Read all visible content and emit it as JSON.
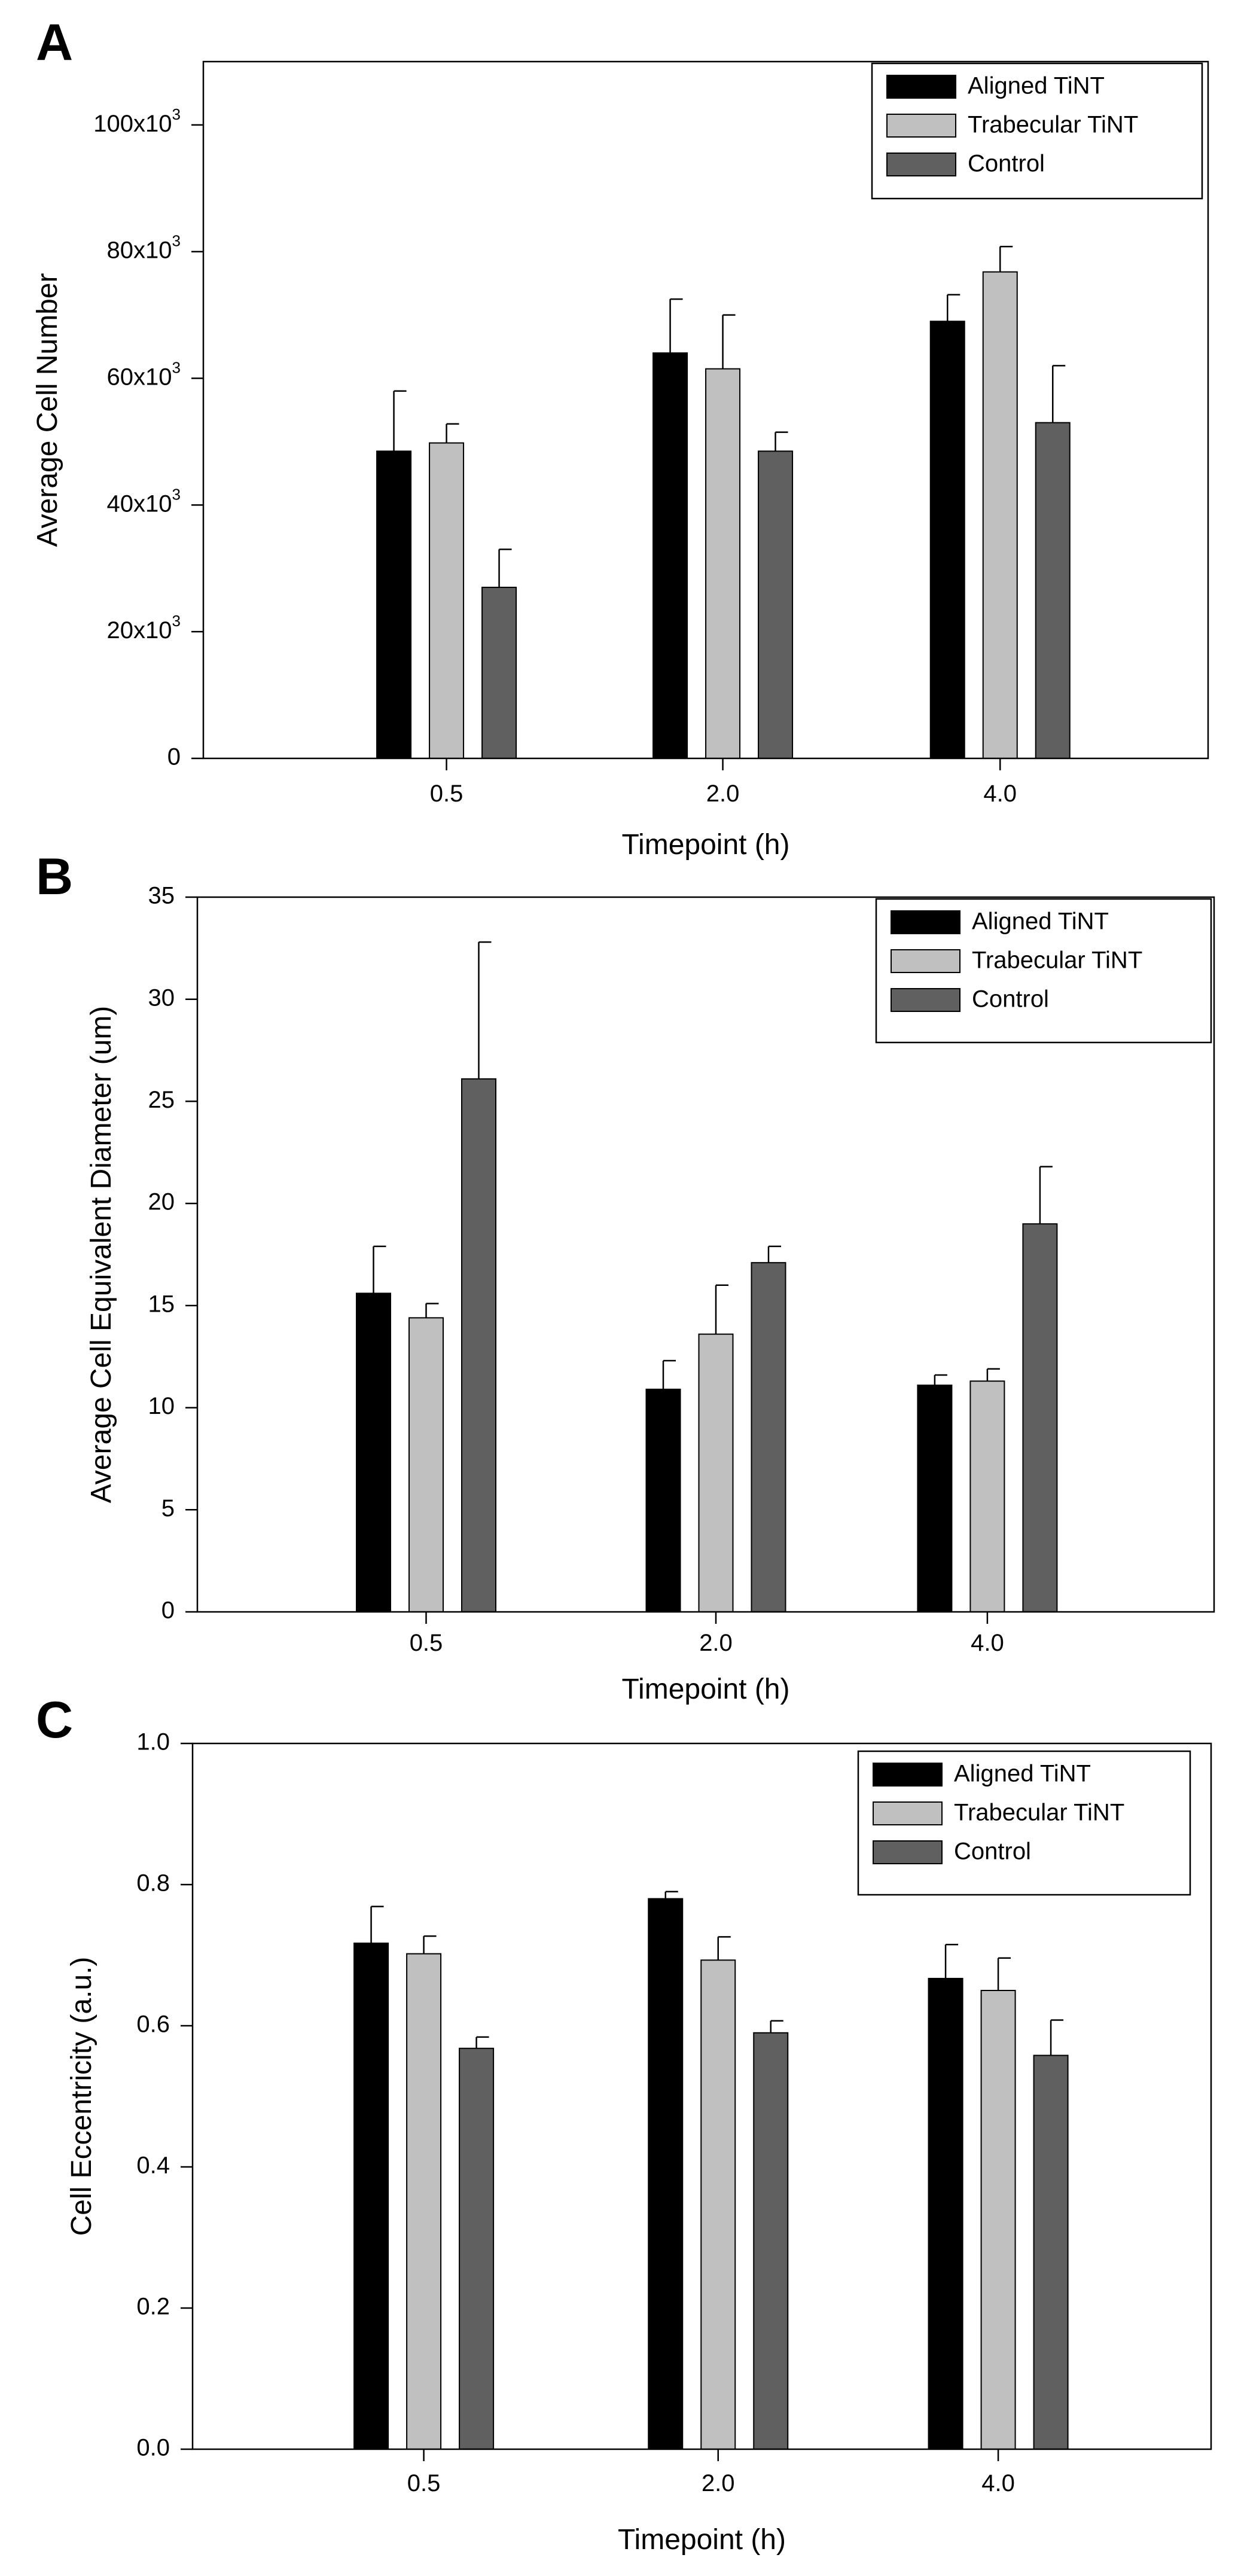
{
  "colors": {
    "aligned": "#000000",
    "trabecular": "#c0c0c0",
    "control": "#606060",
    "axis": "#000000"
  },
  "chart_data": [
    {
      "panel": "A",
      "type": "bar",
      "xlabel": "Timepoint (h)",
      "ylabel": "Average Cell Number",
      "categories": [
        "0.5",
        "2.0",
        "4.0"
      ],
      "ylim": [
        0,
        110000
      ],
      "yticks": [
        0,
        20000,
        40000,
        60000,
        80000,
        100000
      ],
      "ytick_labels": [
        "0",
        "20x10",
        "40x10",
        "60x10",
        "80x10",
        "100x10"
      ],
      "ytick_exponent": "3",
      "legend_position": "top-right",
      "series": [
        {
          "name": "Aligned TiNT",
          "color": "#000000",
          "values": [
            48500,
            64000,
            69000
          ],
          "errors": [
            9500,
            8500,
            4200
          ]
        },
        {
          "name": "Trabecular TiNT",
          "color": "#c0c0c0",
          "values": [
            49800,
            61500,
            76800
          ],
          "errors": [
            3000,
            8500,
            4000
          ]
        },
        {
          "name": "Control",
          "color": "#606060",
          "values": [
            27000,
            48500,
            53000
          ],
          "errors": [
            6000,
            3000,
            9000
          ]
        }
      ]
    },
    {
      "panel": "B",
      "type": "bar",
      "xlabel": "Timepoint (h)",
      "ylabel": "Average Cell Equivalent Diameter (um)",
      "categories": [
        "0.5",
        "2.0",
        "4.0"
      ],
      "ylim": [
        0,
        35
      ],
      "yticks": [
        0,
        5,
        10,
        15,
        20,
        25,
        30,
        35
      ],
      "ytick_labels": [
        "0",
        "5",
        "10",
        "15",
        "20",
        "25",
        "30",
        "35"
      ],
      "legend_position": "top-right",
      "series": [
        {
          "name": "Aligned TiNT",
          "color": "#000000",
          "values": [
            15.6,
            10.9,
            11.1
          ],
          "errors": [
            2.3,
            1.4,
            0.5
          ]
        },
        {
          "name": "Trabecular TiNT",
          "color": "#c0c0c0",
          "values": [
            14.4,
            13.6,
            11.3
          ],
          "errors": [
            0.7,
            2.4,
            0.6
          ]
        },
        {
          "name": "Control",
          "color": "#606060",
          "values": [
            26.1,
            17.1,
            19.0
          ],
          "errors": [
            6.7,
            0.8,
            2.8
          ]
        }
      ]
    },
    {
      "panel": "C",
      "type": "bar",
      "xlabel": "Timepoint (h)",
      "ylabel": "Cell Eccentricity (a.u.)",
      "categories": [
        "0.5",
        "2.0",
        "4.0"
      ],
      "ylim": [
        0,
        1.0
      ],
      "yticks": [
        0,
        0.2,
        0.4,
        0.6,
        0.8,
        1.0
      ],
      "ytick_labels": [
        "0.0",
        "0.2",
        "0.4",
        "0.6",
        "0.8",
        "1.0"
      ],
      "legend_position": "top-right",
      "series": [
        {
          "name": "Aligned TiNT",
          "color": "#000000",
          "values": [
            0.717,
            0.78,
            0.667
          ],
          "errors": [
            0.052,
            0.01,
            0.048
          ]
        },
        {
          "name": "Trabecular TiNT",
          "color": "#c0c0c0",
          "values": [
            0.702,
            0.693,
            0.65
          ],
          "errors": [
            0.025,
            0.033,
            0.046
          ]
        },
        {
          "name": "Control",
          "color": "#606060",
          "values": [
            0.568,
            0.59,
            0.558
          ],
          "errors": [
            0.016,
            0.017,
            0.05
          ]
        }
      ]
    }
  ]
}
